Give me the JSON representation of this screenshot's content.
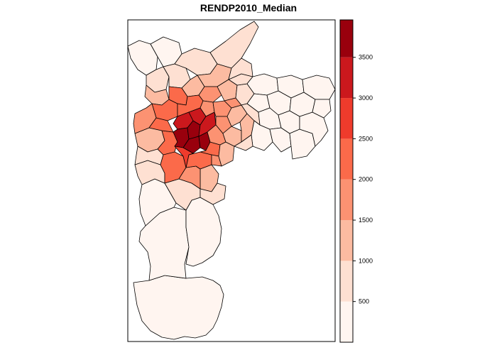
{
  "title": "RENDP2010_Median",
  "legend": {
    "breaks": [
      0,
      500,
      1000,
      1500,
      2000,
      2500,
      3000,
      3500,
      4000
    ],
    "tick_labels": [
      "500",
      "1000",
      "1500",
      "2000",
      "2500",
      "3000",
      "3500"
    ],
    "colors": [
      "#fff5f0",
      "#fee0d2",
      "#fcbba1",
      "#fc9272",
      "#fb6a4a",
      "#ef3b2c",
      "#cb181d",
      "#99000d"
    ]
  }
}
